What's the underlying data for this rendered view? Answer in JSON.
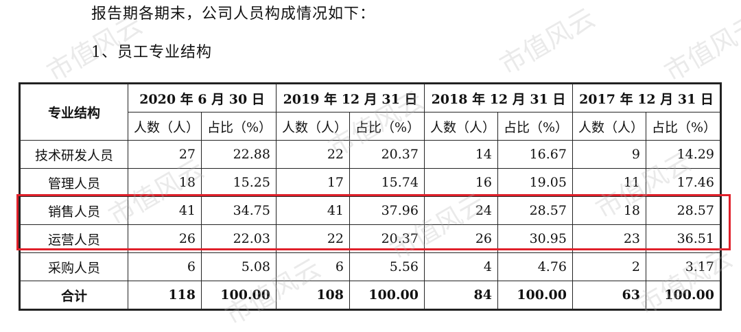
{
  "intro_text": "报告期各期末，公司人员构成情况如下：",
  "section_title": "1、员工专业结构",
  "watermark_text": "市值风云",
  "table": {
    "category_header": "专业结构",
    "periods": [
      {
        "label": "2020 年 6 月 30 日"
      },
      {
        "label": "2019 年 12 月 31 日"
      },
      {
        "label": "2018 年 12 月 31 日"
      },
      {
        "label": "2017 年 12 月 31 日"
      }
    ],
    "count_header": "人数（人）",
    "ratio_header": "占比（%）",
    "rows": [
      {
        "category": "技术研发人员",
        "values": [
          "27",
          "22.88",
          "22",
          "20.37",
          "14",
          "16.67",
          "9",
          "14.29"
        ]
      },
      {
        "category": "管理人员",
        "values": [
          "18",
          "15.25",
          "17",
          "15.74",
          "16",
          "19.05",
          "11",
          "17.46"
        ]
      },
      {
        "category": "销售人员",
        "values": [
          "41",
          "34.75",
          "41",
          "37.96",
          "24",
          "28.57",
          "18",
          "28.57"
        ]
      },
      {
        "category": "运营人员",
        "values": [
          "26",
          "22.03",
          "22",
          "20.37",
          "26",
          "30.95",
          "23",
          "36.51"
        ]
      },
      {
        "category": "采购人员",
        "values": [
          "6",
          "5.08",
          "6",
          "5.56",
          "4",
          "4.76",
          "2",
          "3.17"
        ]
      }
    ],
    "total": {
      "category": "合计",
      "values": [
        "118",
        "100.00",
        "108",
        "100.00",
        "84",
        "100.00",
        "63",
        "100.00"
      ]
    }
  },
  "highlight": {
    "rows": [
      "销售人员",
      "运营人员"
    ],
    "color": "#e0202a"
  }
}
